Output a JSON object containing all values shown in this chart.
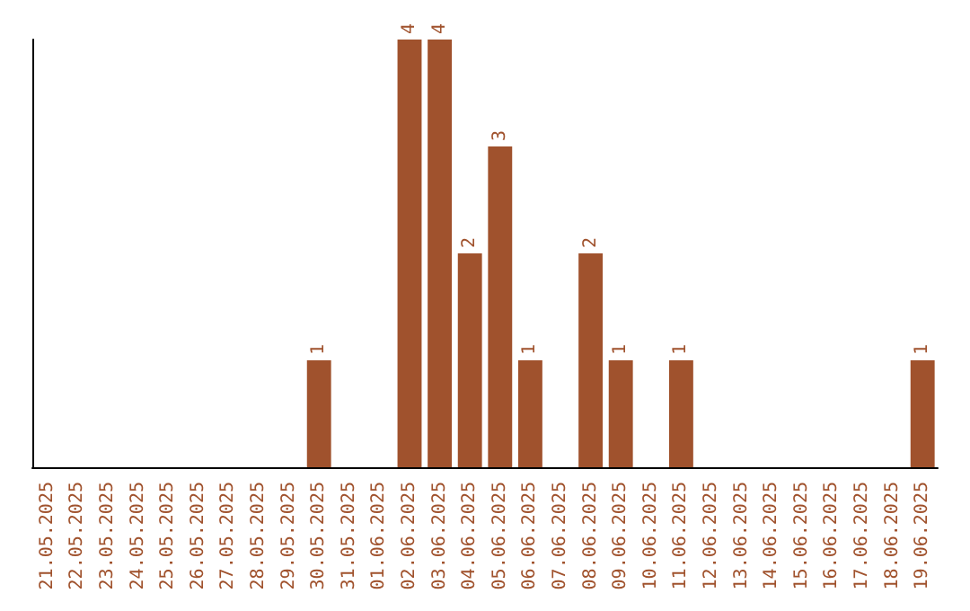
{
  "chart_data": {
    "type": "bar",
    "categories": [
      "21.05.2025",
      "22.05.2025",
      "23.05.2025",
      "24.05.2025",
      "25.05.2025",
      "26.05.2025",
      "27.05.2025",
      "28.05.2025",
      "29.05.2025",
      "30.05.2025",
      "31.05.2025",
      "01.06.2025",
      "02.06.2025",
      "03.06.2025",
      "04.06.2025",
      "05.06.2025",
      "06.06.2025",
      "07.06.2025",
      "08.06.2025",
      "09.06.2025",
      "10.06.2025",
      "11.06.2025",
      "12.06.2025",
      "13.06.2025",
      "14.06.2025",
      "15.06.2025",
      "16.06.2025",
      "17.06.2025",
      "18.06.2025",
      "19.06.2025"
    ],
    "values": [
      0,
      0,
      0,
      0,
      0,
      0,
      0,
      0,
      0,
      1,
      0,
      0,
      4,
      4,
      2,
      3,
      1,
      0,
      2,
      1,
      0,
      1,
      0,
      0,
      0,
      0,
      0,
      0,
      0,
      1
    ],
    "value_labels": [
      null,
      null,
      null,
      null,
      null,
      null,
      null,
      null,
      null,
      "1",
      null,
      null,
      "4",
      "4",
      "2",
      "3",
      "1",
      null,
      "2",
      "1",
      null,
      "1",
      null,
      null,
      null,
      null,
      null,
      null,
      null,
      "1"
    ],
    "color": "#a0522d"
  }
}
